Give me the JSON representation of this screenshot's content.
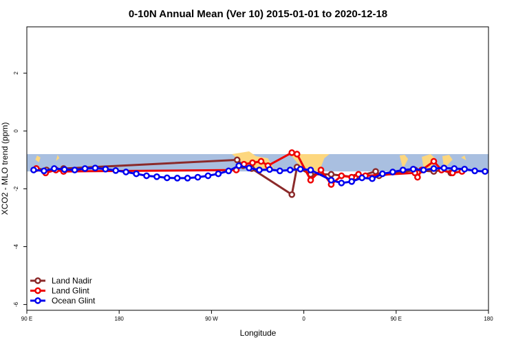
{
  "chart_data": {
    "type": "line",
    "title": "0-10N Annual Mean (Ver 10)   2015-01-01 to 2020-12-18",
    "xlabel": "Longitude",
    "ylabel": "XCO2 - MLO trend (ppm)",
    "xlim": [
      -90,
      180
    ],
    "ylim": [
      -6.2,
      3.6
    ],
    "x_ticks": [
      {
        "value": -90,
        "label": "90 E"
      },
      {
        "value": -36,
        "label": "180"
      },
      {
        "value": 18,
        "label": "90 W"
      },
      {
        "value": 72,
        "label": "0"
      },
      {
        "value": 126,
        "label": "90 E"
      },
      {
        "value": 180,
        "label": "180"
      }
    ],
    "y_ticks": [
      {
        "value": -6,
        "label": "-6"
      },
      {
        "value": -4,
        "label": "-4"
      },
      {
        "value": -2,
        "label": "-2"
      },
      {
        "value": 0,
        "label": "0"
      },
      {
        "value": 2,
        "label": "2"
      }
    ],
    "grid": false,
    "legend_position": "bottom-left",
    "background_band": {
      "y_top": -0.8,
      "y_bottom": -1.4,
      "ocean_color": "#a9bfe0",
      "land_color": "#fdd77e"
    },
    "series": [
      {
        "name": "Land Nadir",
        "color": "#8b2a2a",
        "x": [
          -84.5,
          -78.5,
          -73,
          -68.5,
          33,
          36.5,
          41.5,
          65,
          68,
          76,
          88,
          102,
          114,
          116,
          137,
          148,
          152.5,
          158
        ],
        "y": [
          -1.3,
          -1.35,
          -1.35,
          -1.3,
          -1.0,
          -1.2,
          -1.3,
          -2.2,
          -1.25,
          -1.5,
          -1.5,
          -1.6,
          -1.4,
          -1.55,
          -1.35,
          -1.4,
          -1.35,
          -1.45
        ]
      },
      {
        "name": "Land Glint",
        "color": "#ee0000",
        "x": [
          -84.5,
          -79,
          -73,
          -68.5,
          32.5,
          37,
          42,
          47,
          51,
          65,
          68,
          76,
          82,
          88,
          94,
          100,
          104,
          108,
          137,
          138.5,
          141,
          148,
          152.5,
          159,
          164.5
        ],
        "y": [
          -1.3,
          -1.45,
          -1.35,
          -1.4,
          -1.35,
          -1.15,
          -1.1,
          -1.05,
          -1.2,
          -0.75,
          -0.8,
          -1.7,
          -1.35,
          -1.85,
          -1.55,
          -1.6,
          -1.5,
          -1.55,
          -1.45,
          -1.6,
          -1.35,
          -1.05,
          -1.35,
          -1.45,
          -1.4
        ]
      },
      {
        "name": "Ocean Glint",
        "color": "#0000ee",
        "x": [
          -86,
          -80,
          -74,
          -68,
          -62,
          -56,
          -50,
          -44,
          -38,
          -32,
          -26,
          -20,
          -14,
          -8,
          -2,
          4,
          10,
          16,
          22,
          28,
          34,
          40,
          46,
          52,
          58,
          64,
          70,
          76,
          88,
          94,
          100,
          106,
          112,
          118,
          124,
          130,
          136,
          142,
          148,
          154,
          160,
          166,
          172,
          178
        ],
        "y": [
          -1.35,
          -1.38,
          -1.3,
          -1.33,
          -1.35,
          -1.3,
          -1.28,
          -1.32,
          -1.37,
          -1.42,
          -1.48,
          -1.55,
          -1.58,
          -1.62,
          -1.63,
          -1.63,
          -1.6,
          -1.55,
          -1.48,
          -1.38,
          -1.2,
          -1.28,
          -1.35,
          -1.33,
          -1.38,
          -1.35,
          -1.32,
          -1.35,
          -1.7,
          -1.8,
          -1.75,
          -1.62,
          -1.65,
          -1.48,
          -1.42,
          -1.35,
          -1.32,
          -1.35,
          -1.3,
          -1.28,
          -1.3,
          -1.32,
          -1.38,
          -1.4
        ]
      }
    ]
  }
}
